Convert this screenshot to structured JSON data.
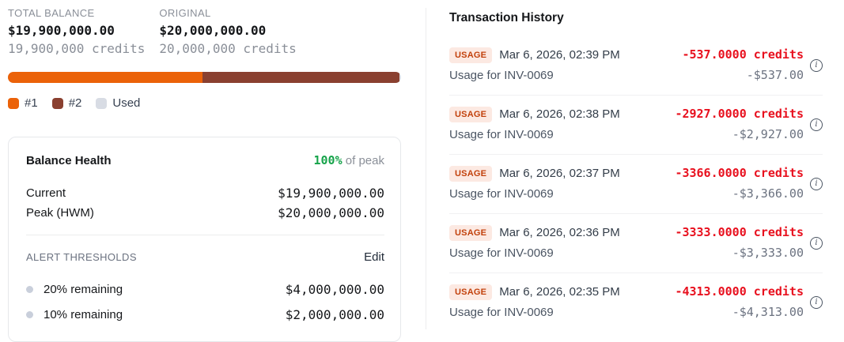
{
  "summary": {
    "total_balance": {
      "label": "TOTAL BALANCE",
      "usd": "$19,900,000.00",
      "credits": "19,900,000 credits"
    },
    "original": {
      "label": "ORIGINAL",
      "usd": "$20,000,000.00",
      "credits": "20,000,000 credits"
    }
  },
  "progress": {
    "segments": [
      {
        "name": "#1",
        "color": "#eb6209",
        "percent": 49.5
      },
      {
        "name": "#2",
        "color": "#8a4030",
        "percent": 50.0
      }
    ],
    "track_color": "#dce0e7"
  },
  "legend": {
    "items": [
      {
        "label": "#1",
        "color": "#eb6209"
      },
      {
        "label": "#2",
        "color": "#8a4030"
      },
      {
        "label": "Used",
        "color": "#d8dce4"
      }
    ]
  },
  "balance_health": {
    "title": "Balance Health",
    "peak_percent": "100%",
    "peak_suffix": " of peak",
    "rows": [
      {
        "label": "Current",
        "value": "$19,900,000.00"
      },
      {
        "label": "Peak (HWM)",
        "value": "$20,000,000.00"
      }
    ],
    "thresholds": {
      "label": "ALERT THRESHOLDS",
      "edit_label": "Edit",
      "items": [
        {
          "label": "20% remaining",
          "value": "$4,000,000.00"
        },
        {
          "label": "10% remaining",
          "value": "$2,000,000.00"
        }
      ]
    }
  },
  "transactions": {
    "title": "Transaction History",
    "rows": [
      {
        "badge": "USAGE",
        "date": "Mar 6, 2026, 02:39 PM",
        "credits": "-537.0000 credits",
        "usd": "-$537.00",
        "desc": "Usage for INV-0069"
      },
      {
        "badge": "USAGE",
        "date": "Mar 6, 2026, 02:38 PM",
        "credits": "-2927.0000 credits",
        "usd": "-$2,927.00",
        "desc": "Usage for INV-0069"
      },
      {
        "badge": "USAGE",
        "date": "Mar 6, 2026, 02:37 PM",
        "credits": "-3366.0000 credits",
        "usd": "-$3,366.00",
        "desc": "Usage for INV-0069"
      },
      {
        "badge": "USAGE",
        "date": "Mar 6, 2026, 02:36 PM",
        "credits": "-3333.0000 credits",
        "usd": "-$3,333.00",
        "desc": "Usage for INV-0069"
      },
      {
        "badge": "USAGE",
        "date": "Mar 6, 2026, 02:35 PM",
        "credits": "-4313.0000 credits",
        "usd": "-$4,313.00",
        "desc": "Usage for INV-0069"
      }
    ]
  },
  "colors": {
    "accent_orange": "#eb6209",
    "accent_brown": "#8a4030",
    "negative_red": "#e8101e",
    "positive_green": "#16a34a",
    "badge_bg": "#fce9e2",
    "badge_text": "#c2410c"
  }
}
